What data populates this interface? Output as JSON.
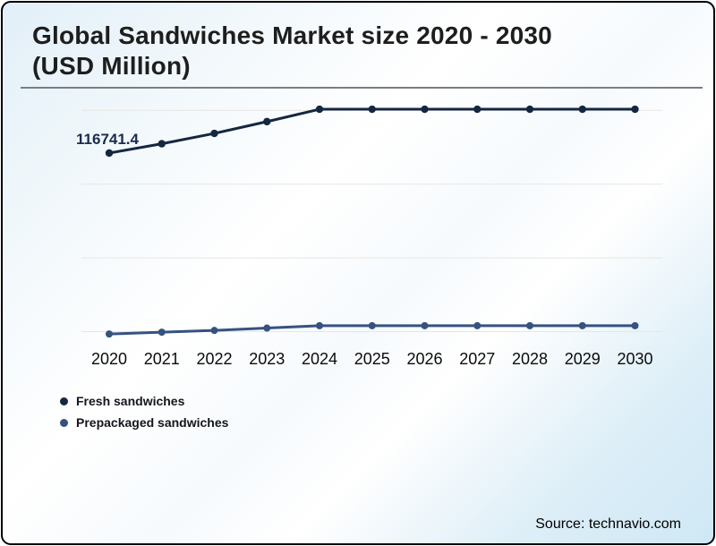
{
  "chart_data": {
    "type": "line",
    "title": "Global Sandwiches Market size 2020 - 2030 (USD Million)",
    "x_tick_labels": [
      "2020",
      "2021",
      "2022",
      "2023",
      "2024",
      "2025",
      "2026",
      "2027",
      "2028",
      "2029",
      "2030"
    ],
    "series": [
      {
        "name": "Fresh sandwiches",
        "color": "#142741",
        "values": [
          116741.4,
          119900,
          123400,
          127400,
          131600,
          131600,
          131600,
          131600,
          131600,
          131600,
          131600
        ]
      },
      {
        "name": "Prepackaged sandwiches",
        "color": "#36527f",
        "values": [
          55400,
          56000,
          56600,
          57400,
          58200,
          58200,
          58200,
          58200,
          58200,
          58200,
          58200
        ]
      }
    ],
    "point_labels": [
      {
        "series_index": 0,
        "x_index": 0,
        "text": "116741.4"
      }
    ],
    "ylim": [
      52000,
      137000
    ],
    "grid": "horizontal",
    "gridline_count": 4,
    "legend_position": "bottom-left"
  },
  "colors": {
    "gridline": "#e9e6e1",
    "frame_border": "#000000",
    "title_text": "#1e1e1e",
    "axis_text": "#0b0b0b",
    "point_label_text": "#1b2c4e",
    "title_rule": "#7d7d7d"
  },
  "source": {
    "text": "Source: technavio.com"
  }
}
